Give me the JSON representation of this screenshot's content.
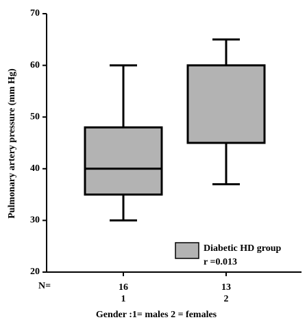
{
  "chart_data": {
    "type": "box",
    "y_label": "Pulmonary artery pressure (mm Hg)",
    "x_label": "Gender :1= males 2 = females",
    "categories": [
      "1",
      "2"
    ],
    "n_label": "N=",
    "n": [
      16,
      13
    ],
    "series": [
      {
        "name": "Diabetic HD group",
        "color": "#b3b3b3",
        "min": [
          30,
          37
        ],
        "q1": [
          35,
          45
        ],
        "median": [
          40,
          45
        ],
        "q3": [
          48,
          60
        ],
        "max": [
          60,
          65
        ]
      }
    ],
    "annotation": "r =0.013",
    "ylim": [
      20,
      70
    ],
    "yticks": [
      20,
      30,
      40,
      50,
      60,
      70
    ],
    "legend": "lower right"
  }
}
